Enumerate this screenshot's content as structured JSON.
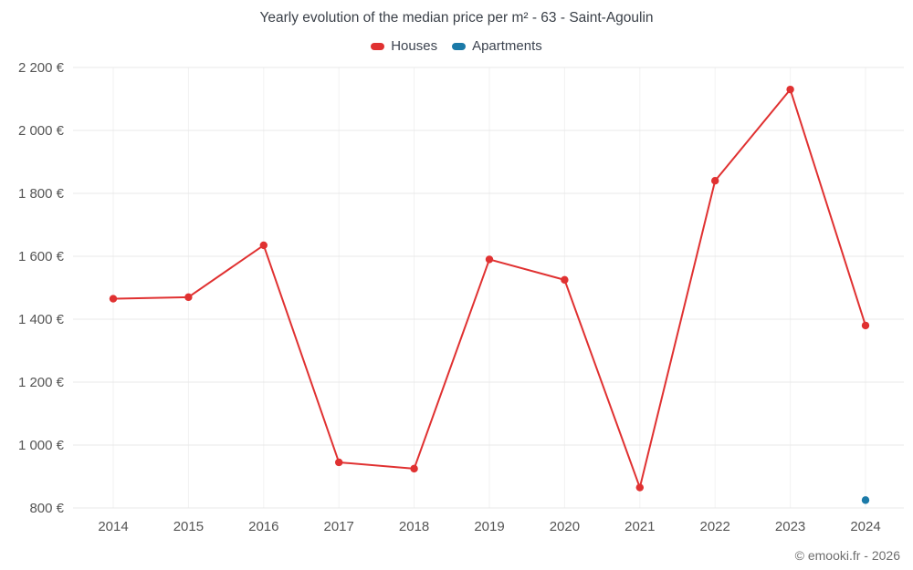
{
  "title": "Yearly evolution of the median price per m² - 63 - Saint-Agoulin",
  "legend": [
    {
      "label": "Houses",
      "color": "#e03131"
    },
    {
      "label": "Apartments",
      "color": "#1b7aa8"
    }
  ],
  "footer": {
    "credit": "© emooki.fr - 2026"
  },
  "chart_data": {
    "type": "line",
    "title": "Yearly evolution of the median price per m² - 63 - Saint-Agoulin",
    "categories": [
      "2014",
      "2015",
      "2016",
      "2017",
      "2018",
      "2019",
      "2020",
      "2021",
      "2022",
      "2023",
      "2024"
    ],
    "series": [
      {
        "name": "Houses",
        "color": "#e03131",
        "x": [
          "2014",
          "2015",
          "2016",
          "2017",
          "2018",
          "2019",
          "2020",
          "2021",
          "2022",
          "2023",
          "2024"
        ],
        "values": [
          1465,
          1470,
          1635,
          945,
          925,
          1590,
          1525,
          865,
          1840,
          2130,
          1380
        ]
      },
      {
        "name": "Apartments",
        "color": "#1b7aa8",
        "x": [
          "2024"
        ],
        "values": [
          825
        ]
      }
    ],
    "xlabel": "",
    "ylabel": "",
    "ylim": [
      800,
      2200
    ],
    "y_tick_step": 200,
    "y_tick_suffix": " €",
    "grid": true,
    "legend_position": "top"
  }
}
